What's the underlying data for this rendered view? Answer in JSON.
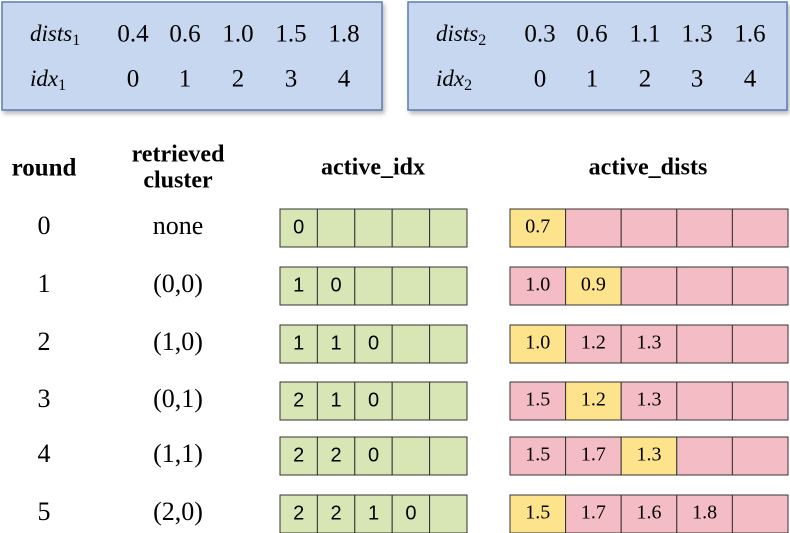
{
  "top_boxes": [
    {
      "dists_label": "dists",
      "dists_sub": "1",
      "dists": [
        "0.4",
        "0.6",
        "1.0",
        "1.5",
        "1.8"
      ],
      "idx_label": "idx",
      "idx_sub": "1",
      "idx": [
        "0",
        "1",
        "2",
        "3",
        "4"
      ]
    },
    {
      "dists_label": "dists",
      "dists_sub": "2",
      "dists": [
        "0.3",
        "0.6",
        "1.1",
        "1.3",
        "1.6"
      ],
      "idx_label": "idx",
      "idx_sub": "2",
      "idx": [
        "0",
        "1",
        "2",
        "3",
        "4"
      ]
    }
  ],
  "table": {
    "headers": {
      "round": "round",
      "cluster_line1": "retrieved",
      "cluster_line2": "cluster",
      "active_idx": "active_idx",
      "active_dists": "active_dists"
    },
    "rows": [
      {
        "round": "0",
        "cluster": "none",
        "active_idx": [
          "0"
        ],
        "active_dists": [
          "0.7"
        ],
        "highlight": 0
      },
      {
        "round": "1",
        "cluster": "(0,0)",
        "active_idx": [
          "1",
          "0"
        ],
        "active_dists": [
          "1.0",
          "0.9"
        ],
        "highlight": 1
      },
      {
        "round": "2",
        "cluster": "(1,0)",
        "active_idx": [
          "1",
          "1",
          "0"
        ],
        "active_dists": [
          "1.0",
          "1.2",
          "1.3"
        ],
        "highlight": 0
      },
      {
        "round": "3",
        "cluster": "(0,1)",
        "active_idx": [
          "2",
          "1",
          "0"
        ],
        "active_dists": [
          "1.5",
          "1.2",
          "1.3"
        ],
        "highlight": 1
      },
      {
        "round": "4",
        "cluster": "(1,1)",
        "active_idx": [
          "2",
          "2",
          "0"
        ],
        "active_dists": [
          "1.5",
          "1.7",
          "1.3"
        ],
        "highlight": 2
      },
      {
        "round": "5",
        "cluster": "(2,0)",
        "active_idx": [
          "2",
          "2",
          "1",
          "0"
        ],
        "active_dists": [
          "1.5",
          "1.7",
          "1.6",
          "1.8"
        ],
        "highlight": 0
      }
    ]
  }
}
